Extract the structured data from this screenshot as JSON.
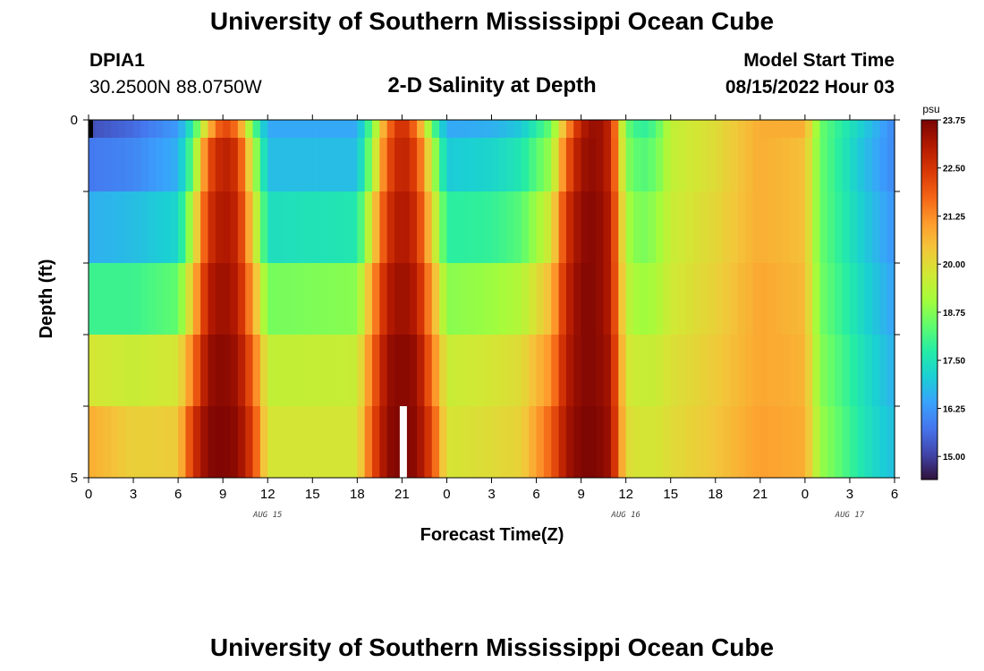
{
  "header": {
    "title": "University of Southern Mississippi Ocean Cube",
    "station_id": "DPIA1",
    "coords": "30.2500N  88.0750W",
    "chart_title": "2-D Salinity at Depth",
    "start_label": "Model Start Time",
    "start_value": "08/15/2022 Hour 03"
  },
  "footer": {
    "title": "University of Southern Mississippi Ocean Cube"
  },
  "chart_data": {
    "type": "heatmap",
    "title": "2-D Salinity at Depth",
    "xlabel": "Forecast Time(Z)",
    "ylabel": "Depth (ft)",
    "x_range_hours": [
      0,
      54
    ],
    "y_range_ft": [
      0,
      5
    ],
    "x_ticks": [
      "0",
      "3",
      "6",
      "9",
      "12",
      "15",
      "18",
      "21",
      "0",
      "3",
      "6",
      "9",
      "12",
      "15",
      "18",
      "21",
      "0",
      "3",
      "6"
    ],
    "y_ticks": [
      "0",
      "5"
    ],
    "date_labels": [
      {
        "label": "AUG 15",
        "hour": 12
      },
      {
        "label": "AUG 16",
        "hour": 36
      },
      {
        "label": "AUG 17",
        "hour": 51
      }
    ],
    "colorbar": {
      "unit": "psu",
      "min": 14.4,
      "max": 23.75,
      "ticks": [
        "23.75",
        "22.50",
        "21.25",
        "20.00",
        "18.75",
        "17.50",
        "16.25",
        "15.00"
      ],
      "colors": [
        "#30123b",
        "#4145ab",
        "#4675ed",
        "#39a2fc",
        "#1bcfd4",
        "#24eca6",
        "#61fc6c",
        "#a4fc3b",
        "#d1e834",
        "#f3c63a",
        "#fe9b2d",
        "#f36315",
        "#d93806",
        "#b11901",
        "#7a0403"
      ]
    },
    "depths_ft": [
      0,
      0.5,
      1.5,
      2.5,
      3.5,
      4.5
    ],
    "salinity_keyframes": [
      {
        "depth_ft": 0,
        "t": [
          0,
          3,
          6,
          7,
          8,
          9,
          10,
          11,
          12,
          18,
          19,
          20,
          21,
          22,
          23,
          24,
          27,
          29,
          31,
          32,
          33,
          34,
          35,
          36,
          37,
          38,
          39,
          42,
          45,
          48,
          49,
          52,
          54
        ],
        "s": [
          15.2,
          15.6,
          16.3,
          17.8,
          20.5,
          22.3,
          21.5,
          18.5,
          16.5,
          16.5,
          18.5,
          21.5,
          22.8,
          21.5,
          18.5,
          16.5,
          16.6,
          17.0,
          18.5,
          21.0,
          23.0,
          23.5,
          22.8,
          18.5,
          17.8,
          18.2,
          19.5,
          20.0,
          20.8,
          20.8,
          18.5,
          17.0,
          16.0
        ]
      },
      {
        "depth_ft": 0.5,
        "t": [
          0,
          3,
          6,
          7,
          8,
          9,
          10,
          11,
          12,
          18,
          19,
          20,
          21,
          22,
          23,
          24,
          27,
          29,
          31,
          32,
          33,
          34,
          35,
          36,
          37,
          38,
          39,
          42,
          45,
          48,
          49,
          52,
          54
        ],
        "s": [
          15.8,
          16.0,
          16.6,
          18.5,
          22.0,
          23.0,
          22.5,
          19.5,
          16.8,
          16.8,
          19.0,
          22.0,
          23.0,
          22.2,
          19.5,
          17.0,
          17.2,
          17.6,
          19.0,
          21.8,
          23.3,
          23.5,
          22.8,
          18.8,
          18.2,
          18.5,
          19.5,
          20.0,
          20.8,
          20.5,
          18.5,
          16.8,
          16.0
        ]
      },
      {
        "depth_ft": 1.5,
        "t": [
          0,
          3,
          6,
          7,
          8,
          9,
          10,
          11,
          12,
          18,
          19,
          20,
          21,
          22,
          23,
          24,
          27,
          29,
          31,
          32,
          33,
          34,
          35,
          36,
          37,
          38,
          39,
          42,
          45,
          48,
          49,
          52,
          54
        ],
        "s": [
          16.6,
          16.8,
          17.2,
          19.5,
          22.5,
          23.2,
          22.8,
          20.2,
          17.4,
          17.6,
          20.0,
          22.5,
          23.2,
          22.6,
          20.2,
          17.8,
          17.9,
          18.3,
          19.8,
          22.5,
          23.5,
          23.6,
          23.0,
          19.2,
          18.6,
          18.9,
          19.6,
          20.1,
          20.8,
          20.5,
          18.5,
          17.0,
          16.2
        ]
      },
      {
        "depth_ft": 2.5,
        "t": [
          0,
          3,
          6,
          7,
          8,
          9,
          10,
          11,
          12,
          18,
          19,
          20,
          21,
          22,
          23,
          24,
          27,
          29,
          31,
          32,
          33,
          34,
          35,
          36,
          37,
          38,
          39,
          42,
          45,
          48,
          49,
          52,
          54
        ],
        "s": [
          18.0,
          18.0,
          18.4,
          20.5,
          23.0,
          23.4,
          23.0,
          21.0,
          18.6,
          18.8,
          21.0,
          23.0,
          23.4,
          23.0,
          21.0,
          18.8,
          19.0,
          19.3,
          20.6,
          22.8,
          23.6,
          23.6,
          23.0,
          19.5,
          19.0,
          19.2,
          19.7,
          20.2,
          20.9,
          20.6,
          18.6,
          17.2,
          16.4
        ]
      },
      {
        "depth_ft": 3.5,
        "t": [
          0,
          3,
          6,
          7,
          8,
          9,
          10,
          11,
          12,
          18,
          19,
          20,
          21,
          22,
          23,
          24,
          27,
          29,
          31,
          32,
          33,
          34,
          35,
          36,
          37,
          38,
          39,
          42,
          45,
          48,
          49,
          52,
          54
        ],
        "s": [
          19.8,
          19.6,
          19.8,
          21.5,
          23.4,
          23.6,
          23.3,
          21.8,
          19.5,
          19.6,
          21.6,
          23.4,
          23.6,
          23.4,
          21.6,
          19.6,
          19.8,
          20.0,
          21.2,
          23.0,
          23.6,
          23.6,
          23.2,
          19.8,
          19.6,
          19.6,
          19.9,
          20.3,
          20.9,
          20.7,
          18.8,
          17.4,
          16.6
        ]
      },
      {
        "depth_ft": 4.5,
        "t": [
          0,
          3,
          6,
          7,
          8,
          9,
          10,
          11,
          12,
          18,
          19,
          20,
          21,
          22,
          23,
          24,
          27,
          29,
          31,
          32,
          33,
          34,
          35,
          36,
          37,
          38,
          39,
          42,
          45,
          48,
          49,
          52,
          54
        ],
        "s": [
          20.8,
          20.2,
          20.3,
          22.5,
          23.6,
          23.7,
          23.5,
          22.3,
          19.8,
          19.8,
          22.0,
          23.5,
          23.7,
          23.5,
          22.2,
          19.8,
          20.0,
          20.2,
          21.8,
          23.2,
          23.7,
          23.7,
          23.3,
          20.0,
          19.8,
          19.8,
          20.0,
          20.4,
          21.0,
          20.8,
          19.0,
          17.5,
          16.8
        ]
      }
    ],
    "missing_cells": [
      {
        "depth_ft": 0,
        "hour": 0
      },
      {
        "depth_ft": 4.5,
        "hour": 21
      }
    ]
  }
}
